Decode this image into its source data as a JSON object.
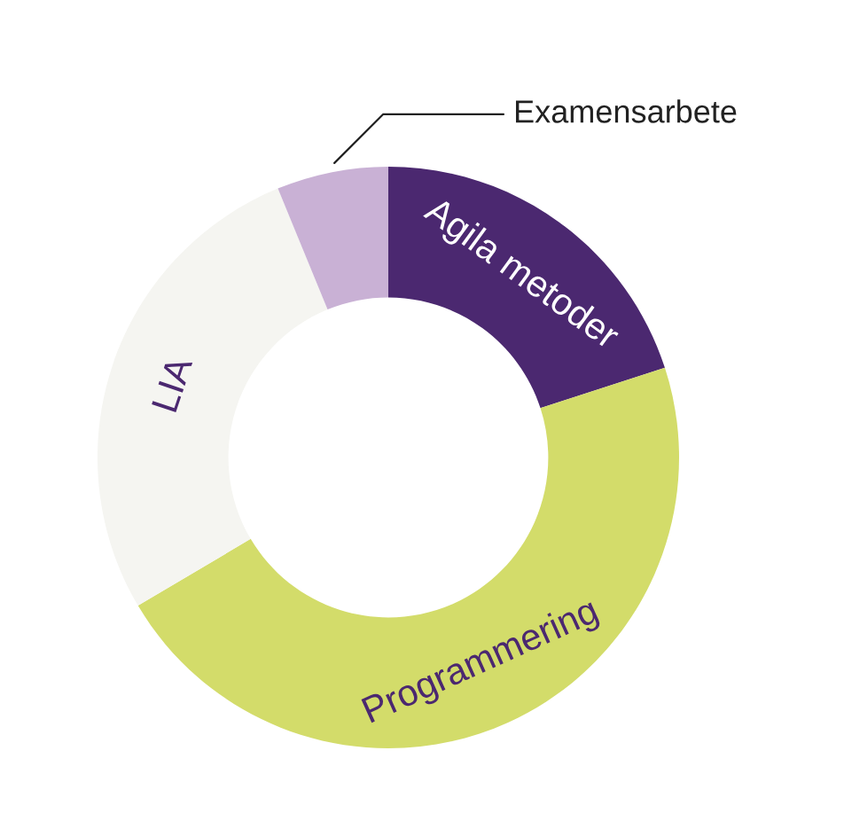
{
  "chart_data": {
    "type": "donut",
    "categories": [
      "Agila metoder",
      "Programmering",
      "LIA",
      "Examensarbete"
    ],
    "values": [
      20,
      46.5,
      27.3,
      6.2
    ],
    "colors": [
      "#4b2870",
      "#d3dc6a",
      "#f5f5f1",
      "#c9b1d5"
    ],
    "legend": false
  }
}
